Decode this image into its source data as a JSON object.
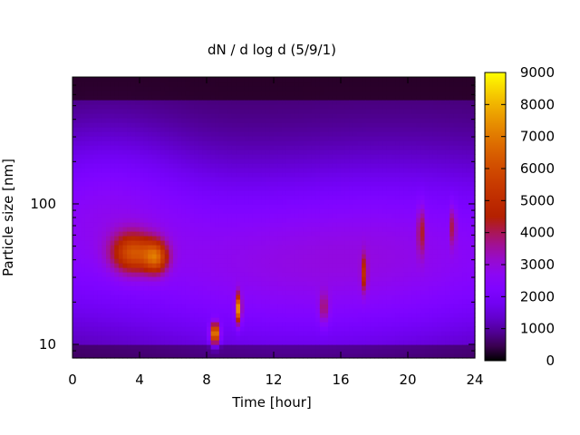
{
  "chart_data": {
    "type": "heatmap",
    "title": "dN / d log d (5/9/1)",
    "xlabel": "Time [hour]",
    "ylabel": "Particle size [nm]",
    "xlim": [
      0,
      24
    ],
    "ylim": [
      8,
      800
    ],
    "y_scale": "log",
    "x_ticks": [
      "0",
      "4",
      "8",
      "12",
      "16",
      "20",
      "24"
    ],
    "x_tick_values": [
      0,
      4,
      8,
      12,
      16,
      20,
      24
    ],
    "y_ticks": [
      "10",
      "100"
    ],
    "y_tick_values": [
      10,
      100
    ],
    "colorbar": {
      "range": [
        0,
        9000
      ],
      "ticks": [
        "0",
        "1000",
        "2000",
        "3000",
        "4000",
        "5000",
        "6000",
        "7000",
        "8000",
        "9000"
      ],
      "tick_values": [
        0,
        1000,
        2000,
        3000,
        4000,
        5000,
        6000,
        7000,
        8000,
        9000
      ],
      "palette": "gnuplot black-purple-red-orange-yellow"
    },
    "features": [
      {
        "time": 3.6,
        "size_nm": 45,
        "value": 5000
      },
      {
        "time": 5.0,
        "size_nm": 42,
        "value": 4800
      },
      {
        "time": 8.5,
        "size_nm": 12,
        "value": 7800
      },
      {
        "time": 9.9,
        "size_nm": 18,
        "value": 6800
      },
      {
        "time": 15.0,
        "size_nm": 18,
        "value": 3000
      },
      {
        "time": 17.4,
        "size_nm": 32,
        "value": 3800
      },
      {
        "time": 20.8,
        "size_nm": 65,
        "value": 3300
      },
      {
        "time": 22.7,
        "size_nm": 70,
        "value": 3400
      }
    ],
    "grid": false,
    "legend": "colorbar-right"
  }
}
